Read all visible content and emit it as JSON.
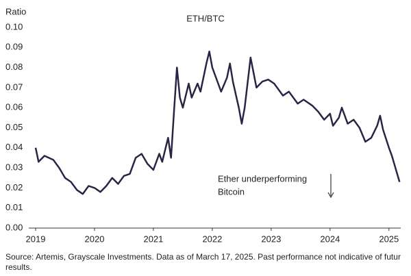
{
  "chart_data": {
    "type": "line",
    "title": "ETH/BTC",
    "y_label": "Ratio",
    "annotation": [
      "Ether underperforming",
      "Bitcoin"
    ],
    "source": "Source: Artemis, Grayscale Investments. Data as of March 17, 2025. Past performance not indicative of futur results.",
    "color": "#2a2545",
    "x": [
      2019.0,
      2019.05,
      2019.15,
      2019.3,
      2019.4,
      2019.5,
      2019.6,
      2019.7,
      2019.8,
      2019.9,
      2020.0,
      2020.1,
      2020.2,
      2020.3,
      2020.4,
      2020.5,
      2020.6,
      2020.7,
      2020.8,
      2020.9,
      2021.0,
      2021.1,
      2021.15,
      2021.25,
      2021.3,
      2021.35,
      2021.4,
      2021.45,
      2021.5,
      2021.6,
      2021.65,
      2021.75,
      2021.8,
      2021.9,
      2021.95,
      2022.0,
      2022.1,
      2022.15,
      2022.25,
      2022.3,
      2022.35,
      2022.45,
      2022.5,
      2022.55,
      2022.65,
      2022.75,
      2022.85,
      2022.95,
      2023.05,
      2023.2,
      2023.3,
      2023.45,
      2023.55,
      2023.7,
      2023.8,
      2023.9,
      2024.0,
      2024.05,
      2024.15,
      2024.2,
      2024.3,
      2024.4,
      2024.5,
      2024.6,
      2024.7,
      2024.8,
      2024.85,
      2024.9,
      2025.0,
      2025.05,
      2025.1,
      2025.15,
      2025.18
    ],
    "values": [
      0.04,
      0.033,
      0.036,
      0.034,
      0.03,
      0.025,
      0.023,
      0.019,
      0.017,
      0.021,
      0.02,
      0.018,
      0.021,
      0.025,
      0.022,
      0.026,
      0.027,
      0.035,
      0.037,
      0.032,
      0.029,
      0.037,
      0.033,
      0.045,
      0.035,
      0.058,
      0.08,
      0.065,
      0.06,
      0.072,
      0.065,
      0.072,
      0.068,
      0.082,
      0.088,
      0.08,
      0.072,
      0.068,
      0.075,
      0.082,
      0.073,
      0.06,
      0.052,
      0.06,
      0.085,
      0.07,
      0.073,
      0.074,
      0.072,
      0.066,
      0.068,
      0.062,
      0.064,
      0.061,
      0.058,
      0.054,
      0.057,
      0.051,
      0.055,
      0.06,
      0.052,
      0.054,
      0.05,
      0.043,
      0.045,
      0.051,
      0.056,
      0.049,
      0.04,
      0.036,
      0.031,
      0.026,
      0.023
    ],
    "xlim": [
      2019,
      2025.2
    ],
    "xticks": [
      2019,
      2020,
      2021,
      2022,
      2023,
      2024,
      2025
    ],
    "ylim": [
      0,
      0.1
    ],
    "yticks": [
      {
        "value": 0,
        "label": "0.00"
      },
      0.01,
      0.02,
      0.03,
      0.04,
      0.05,
      0.06,
      0.07,
      0.08,
      0.09,
      {
        "value": 0.1,
        "label": "0.10"
      }
    ]
  }
}
